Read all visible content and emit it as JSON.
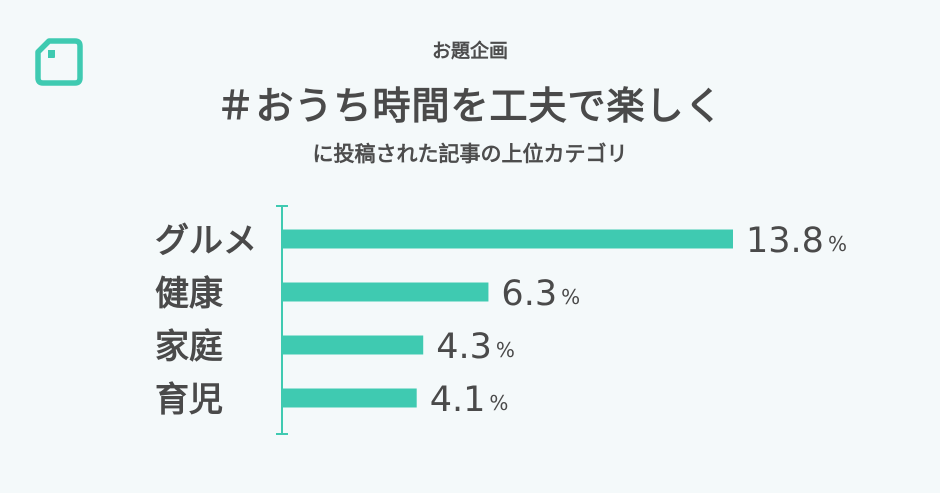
{
  "header": {
    "kicker": "お題企画",
    "title": "＃おうち時間を工夫で楽しく",
    "subtitle": "に投稿された記事の上位カテゴリ"
  },
  "colors": {
    "accent": "#3fcab1",
    "text": "#4a4a4a",
    "background": "#f4f9fa"
  },
  "logo_icon": "note-logo-icon",
  "chart_data": {
    "type": "bar",
    "orientation": "horizontal",
    "categories": [
      "グルメ",
      "健康",
      "家庭",
      "育児"
    ],
    "values": [
      13.8,
      6.3,
      4.3,
      4.1
    ],
    "value_labels": [
      "13.8",
      "6.3",
      "4.3",
      "4.1"
    ],
    "unit": "%",
    "xlim": [
      0,
      13.8
    ],
    "grid": false,
    "legend": "none"
  }
}
